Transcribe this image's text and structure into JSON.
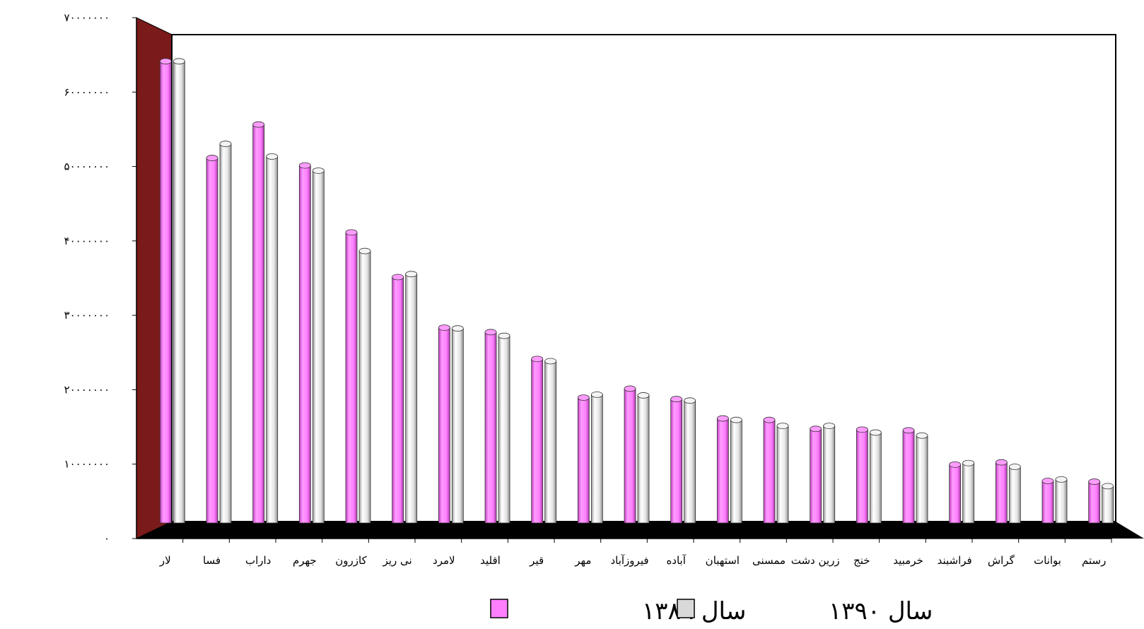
{
  "chart_data": {
    "type": "bar",
    "title": "",
    "xlabel": "",
    "ylabel": "",
    "ylim": [
      0,
      70000000
    ],
    "yticks": [
      0,
      10000000,
      20000000,
      30000000,
      40000000,
      50000000,
      60000000,
      70000000
    ],
    "ytick_labels": [
      "٠",
      "١٠٠٠٠٠٠٠",
      "٢٠٠٠٠٠٠٠",
      "٣٠٠٠٠٠٠٠",
      "۴٠٠٠٠٠٠٠",
      "۵٠٠٠٠٠٠٠",
      "۶٠٠٠٠٠٠٠",
      "٧٠٠٠٠٠٠٠"
    ],
    "grid": false,
    "legend_position": "bottom",
    "categories": [
      "لار",
      "فسا",
      "داراب",
      "جهرم",
      "كازرون",
      "نی ريز",
      "لامرد",
      "اقليد",
      "قير",
      "مهر",
      "فيروزآباد",
      "آباده",
      "استهبان",
      "ممسنی",
      "زرين دشت",
      "خنج",
      "خرمبيد",
      "فراشبند",
      "گراش",
      "بوانات",
      "رستم"
    ],
    "series": [
      {
        "name": "سال ١٣٨٩",
        "color": "#ff7fff",
        "values": [
          63000000,
          50000000,
          54500000,
          49000000,
          40000000,
          34000000,
          27200000,
          26600000,
          23000000,
          17800000,
          19000000,
          17600000,
          15000000,
          14800000,
          13600000,
          13500000,
          13400000,
          8800000,
          9100000,
          6600000,
          6500000
        ]
      },
      {
        "name": "سال ١٣٩٠",
        "color": "#d9d9d9",
        "values": [
          63000000,
          51900000,
          50200000,
          48300000,
          37500000,
          34400000,
          27100000,
          26100000,
          22700000,
          18200000,
          18100000,
          17400000,
          14800000,
          14000000,
          14000000,
          13100000,
          12700000,
          9000000,
          8500000,
          6800000,
          5900000
        ]
      }
    ]
  },
  "legend_color_note": "",
  "colors": {
    "left_wall": "#7a1a1a",
    "floor": "#000000",
    "frame": "#000000",
    "background": "#ffffff"
  }
}
